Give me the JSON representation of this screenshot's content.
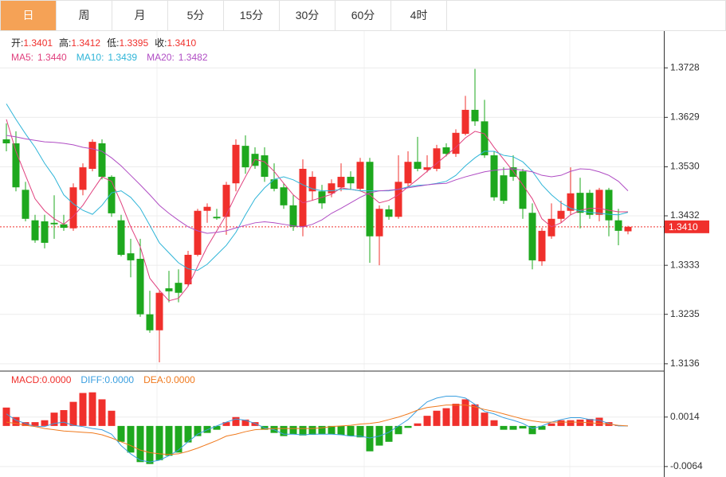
{
  "tabs": [
    "日",
    "周",
    "月",
    "5分",
    "15分",
    "30分",
    "60分",
    "4时"
  ],
  "active_tab": 0,
  "active_color": "#f5a256",
  "chart_data": [
    {
      "type": "candlestick",
      "ohlc_labels": [
        {
          "label": "开:",
          "value": "1.3401"
        },
        {
          "label": "高:",
          "value": "1.3412"
        },
        {
          "label": "低:",
          "value": "1.3395"
        },
        {
          "label": "收:",
          "value": "1.3410"
        }
      ],
      "up_color": "#f0302c",
      "down_color": "#1ea81e",
      "open": [
        1.3585,
        1.3577,
        1.3484,
        1.3423,
        1.3421,
        1.3418,
        1.3415,
        1.3407,
        1.3484,
        1.3526,
        1.3577,
        1.351,
        1.3423,
        1.3357,
        1.3346,
        1.3235,
        1.3203,
        1.3287,
        1.3298,
        1.3295,
        1.3354,
        1.3442,
        1.343,
        1.343,
        1.3497,
        1.3572,
        1.3556,
        1.3553,
        1.3505,
        1.3489,
        1.3453,
        1.341,
        1.3481,
        1.3481,
        1.3477,
        1.3489,
        1.351,
        1.3486,
        1.354,
        1.3391,
        1.3445,
        1.343,
        1.3497,
        1.354,
        1.3524,
        1.3526,
        1.3569,
        1.3556,
        1.3596,
        1.3644,
        1.3621,
        1.3553,
        1.3513,
        1.3529,
        1.3521,
        1.3438,
        1.3341,
        1.3391,
        1.3426,
        1.3442,
        1.3478,
        1.3478,
        1.3434,
        1.3484,
        1.3423,
        1.3401
      ],
      "high": [
        1.3617,
        1.3601,
        1.35,
        1.3434,
        1.3434,
        1.3473,
        1.3434,
        1.3497,
        1.3537,
        1.3585,
        1.3585,
        1.3513,
        1.3434,
        1.3386,
        1.3386,
        1.3282,
        1.3282,
        1.3322,
        1.3325,
        1.3362,
        1.3446,
        1.3457,
        1.3446,
        1.35,
        1.3585,
        1.3593,
        1.3569,
        1.3569,
        1.3537,
        1.3497,
        1.3473,
        1.3545,
        1.3521,
        1.3494,
        1.3505,
        1.3537,
        1.3521,
        1.3548,
        1.3548,
        1.3453,
        1.3453,
        1.3553,
        1.3561,
        1.359,
        1.3553,
        1.3574,
        1.3577,
        1.3605,
        1.3672,
        1.3726,
        1.3664,
        1.3561,
        1.3529,
        1.3553,
        1.3526,
        1.3457,
        1.3408,
        1.3457,
        1.3462,
        1.3529,
        1.3508,
        1.3484,
        1.3488,
        1.3488,
        1.3446,
        1.3412
      ],
      "low": [
        1.3561,
        1.3481,
        1.3421,
        1.3378,
        1.3367,
        1.3386,
        1.3402,
        1.3402,
        1.3473,
        1.3521,
        1.3505,
        1.343,
        1.3351,
        1.3309,
        1.323,
        1.3198,
        1.3139,
        1.3259,
        1.3259,
        1.329,
        1.3351,
        1.3418,
        1.3424,
        1.3394,
        1.3481,
        1.3516,
        1.3526,
        1.35,
        1.3481,
        1.3446,
        1.3402,
        1.3391,
        1.3462,
        1.3446,
        1.3469,
        1.3481,
        1.3484,
        1.3481,
        1.3338,
        1.3333,
        1.3424,
        1.3426,
        1.3489,
        1.3521,
        1.3519,
        1.3521,
        1.3551,
        1.355,
        1.3593,
        1.3612,
        1.3548,
        1.3462,
        1.3456,
        1.3502,
        1.3426,
        1.3325,
        1.3332,
        1.3386,
        1.3418,
        1.3434,
        1.3407,
        1.3426,
        1.3421,
        1.3391,
        1.3373,
        1.3395
      ],
      "close": [
        1.3577,
        1.3489,
        1.3426,
        1.3383,
        1.3378,
        1.3415,
        1.3408,
        1.3489,
        1.3529,
        1.358,
        1.351,
        1.3437,
        1.3354,
        1.3343,
        1.3235,
        1.3203,
        1.3278,
        1.3281,
        1.3278,
        1.3354,
        1.3442,
        1.345,
        1.3427,
        1.3494,
        1.3574,
        1.3529,
        1.3532,
        1.351,
        1.3486,
        1.3453,
        1.341,
        1.3526,
        1.351,
        1.3457,
        1.3497,
        1.351,
        1.3497,
        1.354,
        1.3391,
        1.3446,
        1.343,
        1.35,
        1.354,
        1.3526,
        1.3529,
        1.3567,
        1.3556,
        1.3598,
        1.3644,
        1.3621,
        1.3553,
        1.3469,
        1.3462,
        1.351,
        1.3446,
        1.3343,
        1.3402,
        1.3426,
        1.3442,
        1.3477,
        1.3438,
        1.3434,
        1.3484,
        1.3423,
        1.3402,
        1.341
      ],
      "series": [
        {
          "name": "MA5",
          "label": "MA5:",
          "value_label": "1.3440",
          "color": "#e0407e",
          "values": [
            1.3625,
            1.3561,
            1.3513,
            1.3466,
            1.3442,
            1.3426,
            1.3415,
            1.3431,
            1.3453,
            1.3482,
            1.351,
            1.3501,
            1.3458,
            1.341,
            1.337,
            1.3307,
            1.3283,
            1.3262,
            1.3267,
            1.3291,
            1.3331,
            1.337,
            1.3402,
            1.3434,
            1.3474,
            1.351,
            1.3545,
            1.354,
            1.3521,
            1.3497,
            1.3474,
            1.3458,
            1.3463,
            1.3469,
            1.3475,
            1.3488,
            1.3485,
            1.3482,
            1.3474,
            1.3458,
            1.3463,
            1.3474,
            1.349,
            1.3505,
            1.3521,
            1.3537,
            1.3553,
            1.3569,
            1.3588,
            1.3601,
            1.3596,
            1.3569,
            1.3545,
            1.3521,
            1.3494,
            1.3466,
            1.3426,
            1.341,
            1.3418,
            1.3434,
            1.3443,
            1.3447,
            1.3447,
            1.3443,
            1.344,
            1.344
          ]
        },
        {
          "name": "MA10",
          "label": "MA10:",
          "value_label": "1.3439",
          "color": "#2fb5d8",
          "values": [
            1.3656,
            1.3625,
            1.3596,
            1.3569,
            1.3537,
            1.351,
            1.3474,
            1.3456,
            1.3443,
            1.3435,
            1.3453,
            1.3478,
            1.3482,
            1.3469,
            1.3447,
            1.3413,
            1.3378,
            1.3358,
            1.3338,
            1.3326,
            1.3323,
            1.3335,
            1.3354,
            1.3373,
            1.3399,
            1.3434,
            1.3466,
            1.3488,
            1.3505,
            1.351,
            1.3504,
            1.3494,
            1.3486,
            1.3482,
            1.3482,
            1.3485,
            1.3485,
            1.3482,
            1.3482,
            1.3482,
            1.3482,
            1.3485,
            1.349,
            1.3493,
            1.3494,
            1.3497,
            1.3501,
            1.3513,
            1.3532,
            1.3548,
            1.3561,
            1.3561,
            1.3553,
            1.355,
            1.354,
            1.3521,
            1.3494,
            1.3474,
            1.3458,
            1.3447,
            1.3442,
            1.3439,
            1.3437,
            1.3435,
            1.3434,
            1.3439
          ]
        },
        {
          "name": "MA20",
          "label": "MA20:",
          "value_label": "1.3482",
          "color": "#b04dc4",
          "values": [
            1.3593,
            1.359,
            1.3586,
            1.3583,
            1.358,
            1.3579,
            1.3577,
            1.3574,
            1.3569,
            1.3566,
            1.3561,
            1.3548,
            1.3532,
            1.3513,
            1.3494,
            1.3474,
            1.3453,
            1.3437,
            1.3423,
            1.341,
            1.3402,
            1.3397,
            1.3399,
            1.3402,
            1.3408,
            1.3413,
            1.3418,
            1.342,
            1.3418,
            1.3415,
            1.3412,
            1.341,
            1.3415,
            1.3424,
            1.3437,
            1.3447,
            1.3458,
            1.3469,
            1.3478,
            1.3482,
            1.3483,
            1.3485,
            1.3488,
            1.3491,
            1.3494,
            1.3496,
            1.3497,
            1.3504,
            1.351,
            1.3515,
            1.352,
            1.3523,
            1.3525,
            1.3526,
            1.3523,
            1.352,
            1.3513,
            1.351,
            1.3513,
            1.3521,
            1.3526,
            1.3525,
            1.352,
            1.3513,
            1.3501,
            1.3482
          ]
        }
      ],
      "ylim": [
        1.3123,
        1.38
      ],
      "yticks": [
        1.3136,
        1.3235,
        1.3333,
        1.3432,
        {
          "value": 1.353,
          "label": "1.3530"
        },
        1.3629,
        1.3728
      ],
      "grid": true,
      "last_price": {
        "value": 1.341,
        "label": "1.3410",
        "color": "#f0302c"
      }
    },
    {
      "type": "macd",
      "series": [
        {
          "name": "MACD",
          "label": "MACD:",
          "value_label": "0.0000",
          "style": "bar",
          "color": "#f0302c",
          "negative_color": "#1ea81e",
          "values": [
            0.0029,
            0.0014,
            0.0006,
            0.0006,
            0.0009,
            0.0021,
            0.0025,
            0.0038,
            0.0052,
            0.0053,
            0.0042,
            0.0024,
            -0.0025,
            -0.0042,
            -0.0057,
            -0.006,
            -0.0054,
            -0.0047,
            -0.0042,
            -0.0026,
            -0.0016,
            -0.0011,
            -0.0006,
            0.0006,
            0.0014,
            0.001,
            0.0006,
            -0.0006,
            -0.0011,
            -0.0016,
            -0.0013,
            -0.0015,
            -0.0014,
            -0.0013,
            -0.0013,
            -0.0014,
            -0.0016,
            -0.0018,
            -0.004,
            -0.0031,
            -0.0025,
            -0.0013,
            -0.0003,
            0.0004,
            0.0016,
            0.0024,
            0.0028,
            0.0035,
            0.0042,
            0.0034,
            0.0021,
            0.0009,
            -0.0006,
            -0.0006,
            -0.0004,
            -0.0013,
            -0.0006,
            0.0004,
            0.0009,
            0.0009,
            0.001,
            0.0011,
            0.0013,
            0.0006,
            0.0001,
            0.0
          ]
        },
        {
          "name": "DIFF",
          "label": "DIFF:",
          "value_label": "0.0000",
          "style": "line",
          "color": "#3a9fe0",
          "values": [
            0.0019,
            0.0009,
            0.0004,
            -0.0001,
            -0.0001,
            0.0004,
            0.0006,
            0.0001,
            -0.0001,
            -0.0004,
            -0.0006,
            -0.0013,
            -0.0031,
            -0.0044,
            -0.0054,
            -0.0057,
            -0.0054,
            -0.0047,
            -0.0038,
            -0.0025,
            -0.0013,
            -0.0006,
            0.0,
            0.0006,
            0.0011,
            0.0009,
            0.0004,
            -0.0003,
            -0.0006,
            -0.0013,
            -0.0013,
            -0.0014,
            -0.0013,
            -0.0013,
            -0.0013,
            -0.0014,
            -0.0016,
            -0.0016,
            -0.0019,
            -0.0016,
            -0.001,
            0.0,
            0.001,
            0.0025,
            0.0038,
            0.0044,
            0.0047,
            0.0047,
            0.0044,
            0.0034,
            0.0023,
            0.0019,
            0.0013,
            0.0009,
            0.0004,
            -0.0004,
            0.0,
            0.0006,
            0.001,
            0.0013,
            0.0013,
            0.001,
            0.0009,
            0.0004,
            0.0,
            0.0
          ]
        },
        {
          "name": "DEA",
          "label": "DEA:",
          "value_label": "0.0000",
          "style": "line",
          "color": "#f07a1e",
          "values": [
            0.0006,
            0.0004,
            0.0001,
            -0.0001,
            -0.0004,
            -0.0006,
            -0.0008,
            -0.0009,
            -0.001,
            -0.0011,
            -0.0014,
            -0.0019,
            -0.0025,
            -0.0031,
            -0.0038,
            -0.0042,
            -0.0044,
            -0.0045,
            -0.0044,
            -0.004,
            -0.0035,
            -0.0029,
            -0.0023,
            -0.0016,
            -0.0013,
            -0.0009,
            -0.0006,
            -0.0005,
            -0.0004,
            -0.0004,
            -0.0004,
            -0.0004,
            -0.0004,
            -0.0003,
            -0.0001,
            0.0,
            0.0001,
            0.0003,
            0.0004,
            0.0006,
            0.001,
            0.0014,
            0.0019,
            0.0025,
            0.0029,
            0.0031,
            0.0033,
            0.0033,
            0.0033,
            0.003,
            0.0026,
            0.0023,
            0.0019,
            0.0015,
            0.0011,
            0.0008,
            0.0006,
            0.0006,
            0.0006,
            0.0006,
            0.0006,
            0.0005,
            0.0004,
            0.0003,
            0.0001,
            0.0
          ]
        }
      ],
      "ylim": [
        -0.0078,
        0.0084
      ],
      "yticks": [
        -0.0064,
        0.0014
      ],
      "grid": true
    }
  ]
}
